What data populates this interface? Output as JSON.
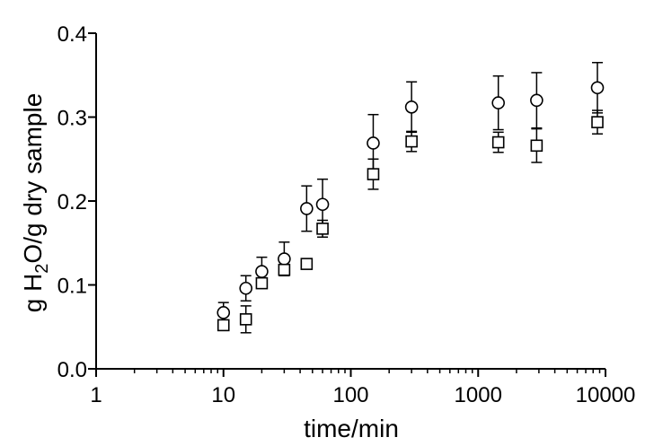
{
  "chart_data": {
    "type": "scatter",
    "xlabel": "time/min",
    "ylabel_parts": [
      "g H",
      "2",
      "O/g dry sample"
    ],
    "xscale": "log",
    "xlim": [
      1,
      10000
    ],
    "ylim": [
      0.0,
      0.4
    ],
    "xticks": [
      1,
      10,
      100,
      1000,
      10000
    ],
    "xtick_labels": [
      "1",
      "10",
      "100",
      "1000",
      "10000"
    ],
    "yticks": [
      0.0,
      0.1,
      0.2,
      0.3,
      0.4
    ],
    "ytick_labels": [
      "0.0",
      "0.1",
      "0.2",
      "0.3",
      "0.4"
    ],
    "grid": false,
    "legend": "none",
    "series": [
      {
        "marker": "circle",
        "x": [
          10,
          15,
          20,
          30,
          45,
          60,
          150,
          300,
          1440,
          2880,
          8640
        ],
        "y": [
          0.067,
          0.096,
          0.116,
          0.131,
          0.191,
          0.196,
          0.269,
          0.312,
          0.317,
          0.32,
          0.335
        ],
        "err": [
          0.012,
          0.015,
          0.017,
          0.02,
          0.027,
          0.03,
          0.034,
          0.03,
          0.032,
          0.033,
          0.03
        ]
      },
      {
        "marker": "square",
        "x": [
          10,
          15,
          20,
          30,
          45,
          60,
          150,
          300,
          1440,
          2880,
          8640
        ],
        "y": [
          0.052,
          0.059,
          0.102,
          0.118,
          0.125,
          0.167,
          0.232,
          0.271,
          0.27,
          0.266,
          0.294
        ],
        "err": [
          0.005,
          0.016,
          0.005,
          0.004,
          0.003,
          0.01,
          0.018,
          0.012,
          0.012,
          0.02,
          0.014
        ]
      }
    ]
  }
}
